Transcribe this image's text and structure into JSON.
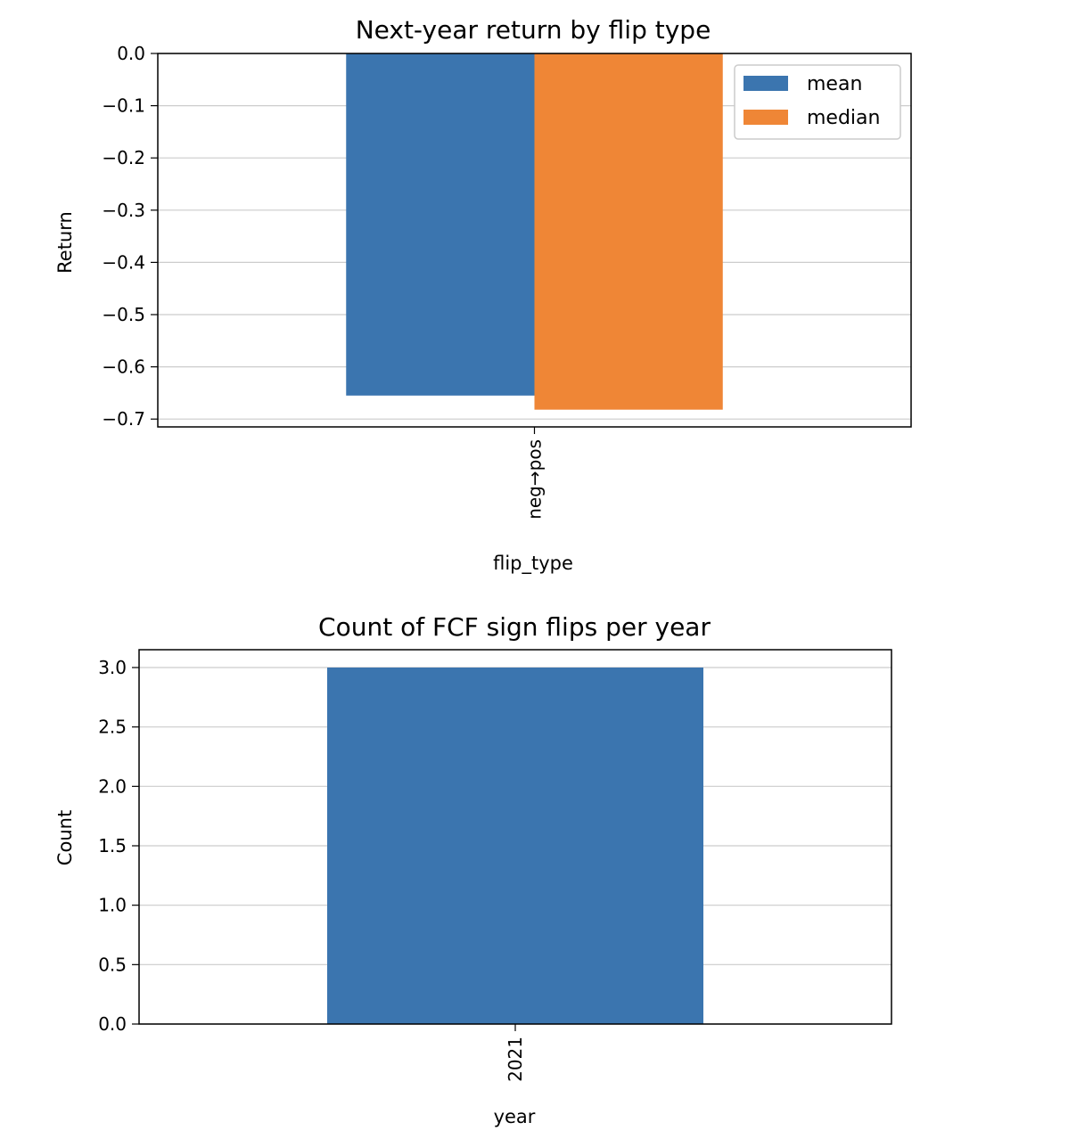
{
  "colors": {
    "mean": "#3b75af",
    "median": "#ef8636",
    "grid": "#cccccc",
    "axis": "#000000"
  },
  "chart_data": [
    {
      "type": "bar",
      "title": "Next-year return by flip type",
      "xlabel": "flip_type",
      "ylabel": "Return",
      "categories": [
        "neg→pos"
      ],
      "series": [
        {
          "name": "mean",
          "values": [
            -0.655
          ]
        },
        {
          "name": "median",
          "values": [
            -0.682
          ]
        }
      ],
      "ylim": [
        -0.715,
        0.0
      ],
      "yticks": [
        0.0,
        -0.1,
        -0.2,
        -0.3,
        -0.4,
        -0.5,
        -0.6,
        -0.7
      ],
      "ytick_labels": [
        "0.0",
        "−0.1",
        "−0.2",
        "−0.3",
        "−0.4",
        "−0.5",
        "−0.6",
        "−0.7"
      ],
      "grid": "y",
      "legend": "top-right"
    },
    {
      "type": "bar",
      "title": "Count of FCF sign flips per year",
      "xlabel": "year",
      "ylabel": "Count",
      "categories": [
        "2021"
      ],
      "series": [
        {
          "values": [
            3
          ]
        }
      ],
      "ylim": [
        0,
        3.15
      ],
      "yticks": [
        0.0,
        0.5,
        1.0,
        1.5,
        2.0,
        2.5,
        3.0
      ],
      "ytick_labels": [
        "0.0",
        "0.5",
        "1.0",
        "1.5",
        "2.0",
        "2.5",
        "3.0"
      ],
      "grid": "y"
    }
  ]
}
